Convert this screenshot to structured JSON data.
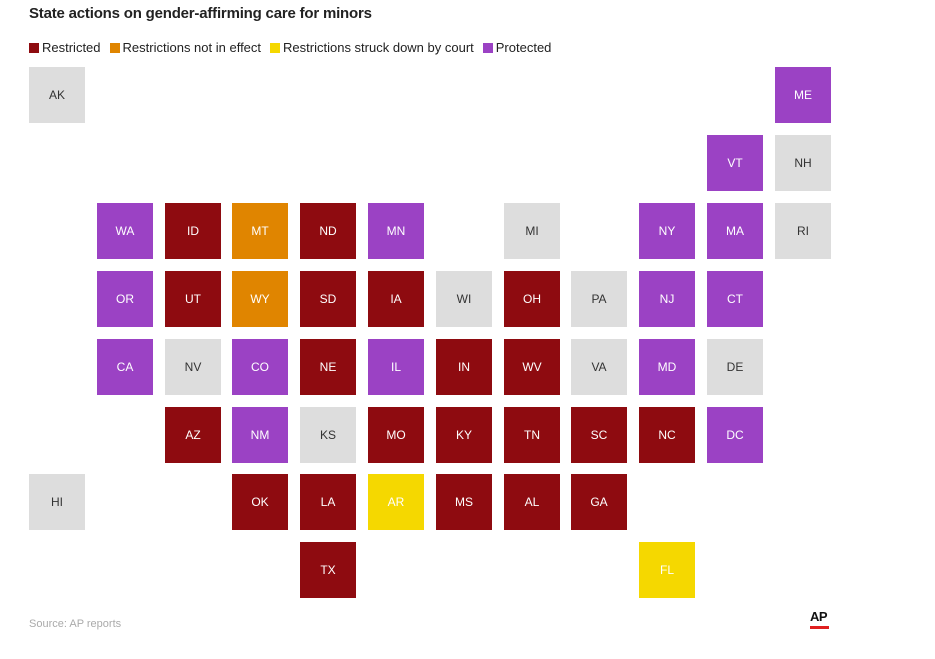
{
  "title": "State actions on gender-affirming care for minors",
  "legend": [
    {
      "key": "restricted",
      "label": "Restricted",
      "color": "#8e0b10"
    },
    {
      "key": "not_in_effect",
      "label": "Restrictions not in effect",
      "color": "#e08500"
    },
    {
      "key": "struck_down",
      "label": "Restrictions struck down by court",
      "color": "#f5d800"
    },
    {
      "key": "protected",
      "label": "Protected",
      "color": "#9b42c4"
    }
  ],
  "no_action_color": "#dddddd",
  "states": [
    {
      "abbr": "AK",
      "status": "none"
    },
    {
      "abbr": "ME",
      "status": "protected"
    },
    {
      "abbr": "VT",
      "status": "protected"
    },
    {
      "abbr": "NH",
      "status": "none"
    },
    {
      "abbr": "WA",
      "status": "protected"
    },
    {
      "abbr": "ID",
      "status": "restricted"
    },
    {
      "abbr": "MT",
      "status": "not_in_effect"
    },
    {
      "abbr": "ND",
      "status": "restricted"
    },
    {
      "abbr": "MN",
      "status": "protected"
    },
    {
      "abbr": "MI",
      "status": "none"
    },
    {
      "abbr": "NY",
      "status": "protected"
    },
    {
      "abbr": "MA",
      "status": "protected"
    },
    {
      "abbr": "RI",
      "status": "none"
    },
    {
      "abbr": "OR",
      "status": "protected"
    },
    {
      "abbr": "UT",
      "status": "restricted"
    },
    {
      "abbr": "WY",
      "status": "not_in_effect"
    },
    {
      "abbr": "SD",
      "status": "restricted"
    },
    {
      "abbr": "IA",
      "status": "restricted"
    },
    {
      "abbr": "WI",
      "status": "none"
    },
    {
      "abbr": "OH",
      "status": "restricted"
    },
    {
      "abbr": "PA",
      "status": "none"
    },
    {
      "abbr": "NJ",
      "status": "protected"
    },
    {
      "abbr": "CT",
      "status": "protected"
    },
    {
      "abbr": "CA",
      "status": "protected"
    },
    {
      "abbr": "NV",
      "status": "none"
    },
    {
      "abbr": "CO",
      "status": "protected"
    },
    {
      "abbr": "NE",
      "status": "restricted"
    },
    {
      "abbr": "IL",
      "status": "protected"
    },
    {
      "abbr": "IN",
      "status": "restricted"
    },
    {
      "abbr": "WV",
      "status": "restricted"
    },
    {
      "abbr": "VA",
      "status": "none"
    },
    {
      "abbr": "MD",
      "status": "protected"
    },
    {
      "abbr": "DE",
      "status": "none"
    },
    {
      "abbr": "AZ",
      "status": "restricted"
    },
    {
      "abbr": "NM",
      "status": "protected"
    },
    {
      "abbr": "KS",
      "status": "none"
    },
    {
      "abbr": "MO",
      "status": "restricted"
    },
    {
      "abbr": "KY",
      "status": "restricted"
    },
    {
      "abbr": "TN",
      "status": "restricted"
    },
    {
      "abbr": "SC",
      "status": "restricted"
    },
    {
      "abbr": "NC",
      "status": "restricted"
    },
    {
      "abbr": "DC",
      "status": "protected"
    },
    {
      "abbr": "HI",
      "status": "none"
    },
    {
      "abbr": "OK",
      "status": "restricted"
    },
    {
      "abbr": "LA",
      "status": "restricted"
    },
    {
      "abbr": "AR",
      "status": "struck_down"
    },
    {
      "abbr": "MS",
      "status": "restricted"
    },
    {
      "abbr": "AL",
      "status": "restricted"
    },
    {
      "abbr": "GA",
      "status": "restricted"
    },
    {
      "abbr": "TX",
      "status": "restricted"
    },
    {
      "abbr": "FL",
      "status": "struck_down"
    }
  ],
  "source": "Source: AP reports",
  "logo": "AP"
}
